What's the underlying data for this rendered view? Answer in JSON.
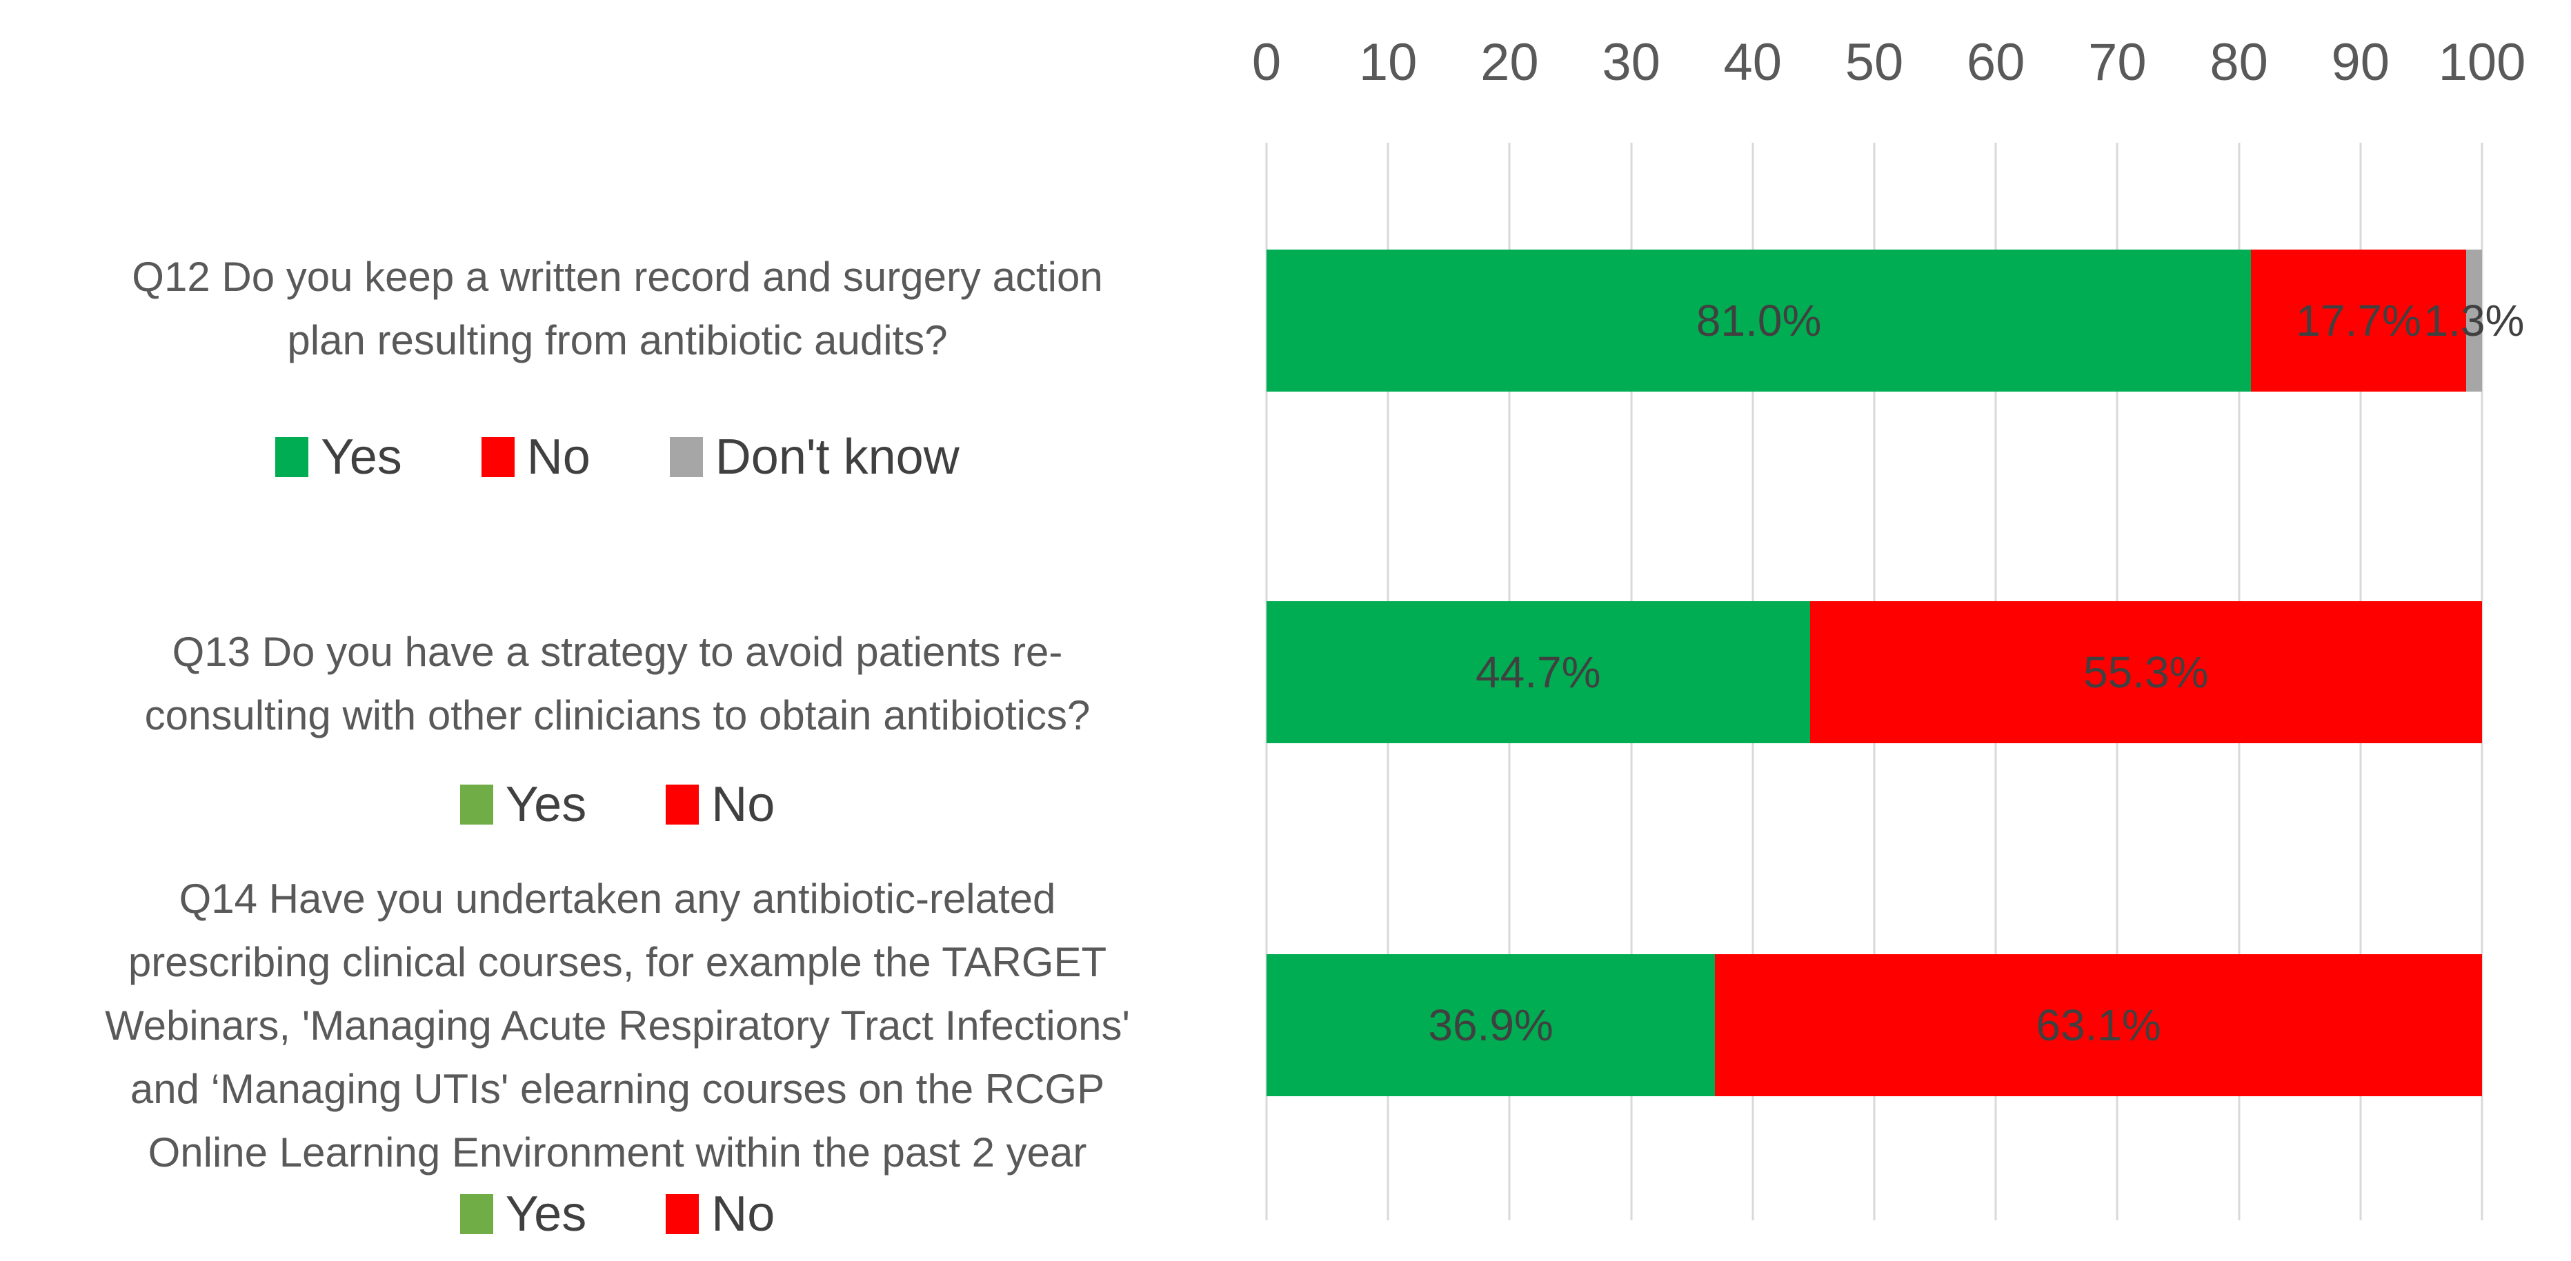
{
  "colors": {
    "background": "#FFFFFF",
    "gridline": "#D9D9D9",
    "axis_text": "#595959",
    "question_text": "#595959",
    "data_label_text": "#404040",
    "yes_green_bar": "#00AD52",
    "yes_green_legend_olive": "#70AD47",
    "no_red": "#FF0000",
    "dont_know_gray": "#A6A6A6"
  },
  "chart_data": {
    "type": "bar",
    "orientation": "horizontal",
    "stacked": true,
    "value_unit": "%",
    "grid": true,
    "axis_top": {
      "min": 0,
      "max": 100,
      "tick_step": 10,
      "ticks": [
        0,
        10,
        20,
        30,
        40,
        50,
        60,
        70,
        80,
        90,
        100
      ]
    },
    "categories": [
      "Q12 Do you keep a written record and surgery action plan resulting from antibiotic audits?",
      "Q13 Do you have a strategy to avoid patients re-consulting with other clinicians to obtain antibiotics?",
      "Q14 Have you undertaken any antibiotic-related prescribing clinical courses, for example the TARGET Webinars, 'Managing Acute Respiratory Tract Infections' and ‘Managing UTIs' elearning courses on the RCGP Online Learning Environment within the past 2 year"
    ],
    "series": [
      {
        "name": "Yes",
        "color": "#00AD52",
        "values": [
          81.0,
          44.7,
          36.9
        ]
      },
      {
        "name": "No",
        "color": "#FF0000",
        "values": [
          17.7,
          55.3,
          63.1
        ]
      },
      {
        "name": "Don't know",
        "color": "#A6A6A6",
        "values": [
          1.3,
          0,
          0
        ]
      }
    ],
    "data_labels": [
      [
        "81.0%",
        "17.7%",
        "1.3%"
      ],
      [
        "44.7%",
        "55.3%"
      ],
      [
        "36.9%",
        "63.1%"
      ]
    ],
    "legend_position": "below-category-label"
  },
  "rows": [
    {
      "question_lines": [
        "Q12 Do you keep a written record and surgery action",
        "plan resulting from antibiotic audits?"
      ],
      "legend": [
        {
          "label": "Yes",
          "color": "#00AD52"
        },
        {
          "label": "No",
          "color": "#FF0000"
        },
        {
          "label": "Don't know",
          "color": "#A6A6A6"
        }
      ]
    },
    {
      "question_lines": [
        "Q13 Do you have a strategy to avoid patients re-",
        "consulting with other clinicians to obtain antibiotics?"
      ],
      "legend": [
        {
          "label": "Yes",
          "color": "#70AD47"
        },
        {
          "label": "No",
          "color": "#FF0000"
        }
      ]
    },
    {
      "question_lines": [
        "Q14 Have you undertaken any antibiotic-related",
        "prescribing clinical courses, for example the TARGET",
        "Webinars, 'Managing Acute Respiratory Tract Infections'",
        "and ‘Managing UTIs' elearning courses on the RCGP",
        "Online Learning Environment within the past 2 year"
      ],
      "legend": [
        {
          "label": "Yes",
          "color": "#70AD47"
        },
        {
          "label": "No",
          "color": "#FF0000"
        }
      ]
    }
  ]
}
